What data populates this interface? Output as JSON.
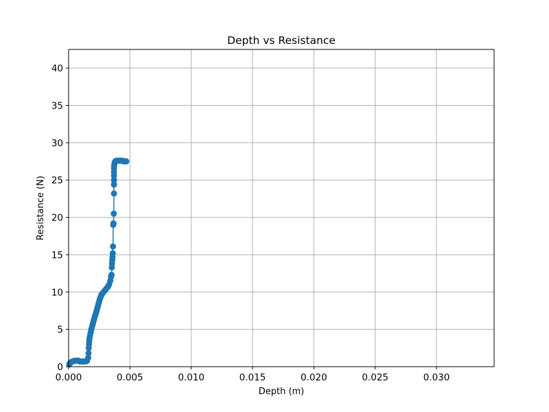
{
  "chart_data": {
    "type": "line",
    "title": "Depth vs Resistance",
    "xlabel": "Depth (m)",
    "ylabel": "Resistance (N)",
    "xlim": [
      0,
      0.0347
    ],
    "ylim": [
      0,
      42.5
    ],
    "grid": true,
    "marker": "circle",
    "color": "#1f77b4",
    "x_ticks": [
      0.0,
      0.005,
      0.01,
      0.015,
      0.02,
      0.025,
      0.03
    ],
    "x_tick_labels": [
      "0.000",
      "0.005",
      "0.010",
      "0.015",
      "0.020",
      "0.025",
      "0.030"
    ],
    "y_ticks": [
      0,
      5,
      10,
      15,
      20,
      25,
      30,
      35,
      40
    ],
    "y_tick_labels": [
      "0",
      "5",
      "10",
      "15",
      "20",
      "25",
      "30",
      "35",
      "40"
    ],
    "series": [
      {
        "x": [
          5e-05,
          0.00012,
          0.0002,
          0.0003,
          0.0004,
          0.0005,
          0.0006,
          0.0007,
          0.0008,
          0.0009,
          0.001,
          0.0011,
          0.0012,
          0.0013,
          0.0014,
          0.0015,
          0.0016,
          0.00162,
          0.00164,
          0.00166,
          0.00168,
          0.0017,
          0.00175,
          0.0018,
          0.00185,
          0.0019,
          0.00195,
          0.002,
          0.00205,
          0.0021,
          0.00215,
          0.0022,
          0.00225,
          0.0023,
          0.00235,
          0.0024,
          0.00245,
          0.0025,
          0.00255,
          0.0026,
          0.00265,
          0.0027,
          0.0028,
          0.0029,
          0.003,
          0.0031,
          0.0032,
          0.0033,
          0.0034,
          0.00345,
          0.0035,
          0.00352,
          0.00354,
          0.00356,
          0.00358,
          0.0036,
          0.00362,
          0.00364,
          0.00366,
          0.00368,
          0.0037,
          0.0037,
          0.0037,
          0.0037,
          0.0037,
          0.0037,
          0.00372,
          0.00375,
          0.0038,
          0.0039,
          0.004,
          0.0041,
          0.0042,
          0.0043,
          0.0044,
          0.0045,
          0.0046,
          0.0047
        ],
        "y": [
          0.3,
          0.5,
          0.6,
          0.7,
          0.75,
          0.8,
          0.8,
          0.8,
          0.8,
          0.7,
          0.7,
          0.7,
          0.7,
          0.7,
          0.7,
          0.8,
          1.2,
          1.8,
          2.5,
          3.0,
          3.4,
          3.8,
          4.2,
          4.6,
          5.0,
          5.3,
          5.6,
          5.9,
          6.2,
          6.5,
          6.8,
          7.0,
          7.3,
          7.6,
          7.9,
          8.2,
          8.5,
          8.8,
          9.1,
          9.3,
          9.5,
          9.7,
          9.9,
          10.1,
          10.3,
          10.5,
          10.7,
          11.0,
          11.5,
          12.0,
          12.3,
          13.3,
          13.8,
          14.3,
          14.7,
          15.2,
          16.1,
          19.0,
          19.2,
          20.5,
          23.2,
          24.4,
          25.0,
          25.6,
          26.1,
          26.6,
          27.0,
          27.3,
          27.5,
          27.6,
          27.6,
          27.6,
          27.6,
          27.6,
          27.6,
          27.5,
          27.5,
          27.5
        ]
      }
    ]
  }
}
